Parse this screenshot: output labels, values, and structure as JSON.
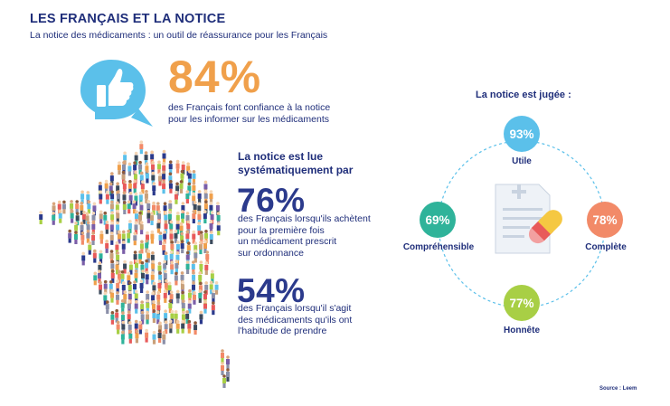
{
  "header": {
    "title": "LES FRANÇAIS ET LA NOTICE",
    "subtitle": "La notice des médicaments : un outil de réassurance pour les Français"
  },
  "trust": {
    "percent": "84%",
    "text_line1": "des Français font confiance à la notice",
    "text_line2": "pour les informer sur les médicaments",
    "icon": "thumbs-up-icon",
    "color": "#f0a04b"
  },
  "read": {
    "title_line1": "La notice est lue",
    "title_line2": "systématiquement par",
    "stat1": {
      "percent": "76%",
      "line1": "des Français lorsqu'ils achètent",
      "line2": "pour la première fois",
      "line3": "un médicament prescrit",
      "line4": "sur ordonnance"
    },
    "stat2": {
      "percent": "54%",
      "line1": "des Français lorsqu'il s'agit",
      "line2": "des médicaments qu'ils ont",
      "line3": "l'habitude de prendre"
    }
  },
  "judged": {
    "title": "La notice est jugée :",
    "items": [
      {
        "percent": "93%",
        "label": "Utile",
        "color": "#5bc0ea"
      },
      {
        "percent": "69%",
        "label": "Compréhensible",
        "color": "#2fb39a"
      },
      {
        "percent": "78%",
        "label": "Complète",
        "color": "#f28a68"
      },
      {
        "percent": "77%",
        "label": "Honnête",
        "color": "#a8cf45"
      }
    ],
    "center_icon": "notice-and-pill-icon"
  },
  "source": "Source : Leem"
}
